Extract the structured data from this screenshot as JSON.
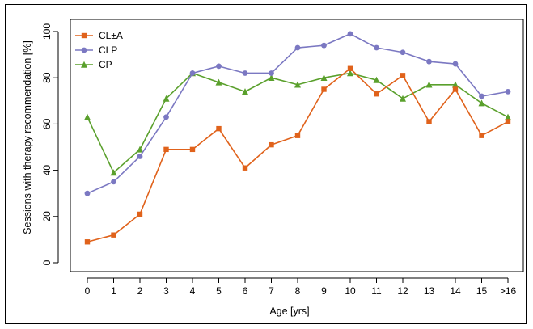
{
  "chart_data": {
    "type": "line",
    "xlabel": "Age [yrs]",
    "ylabel": "Sessions with therapy recommendation [%]",
    "categories": [
      "0",
      "1",
      "2",
      "3",
      "4",
      "5",
      "6",
      "7",
      "8",
      "9",
      "10",
      "11",
      "12",
      "13",
      "14",
      "15",
      ">16"
    ],
    "ylim": [
      0,
      100
    ],
    "yticks": [
      0,
      20,
      40,
      60,
      80,
      100
    ],
    "grid": false,
    "legend_position": "top-left",
    "series": [
      {
        "name": "CL±A",
        "marker": "square",
        "color": "#e0621b",
        "values": [
          9,
          12,
          21,
          49,
          49,
          58,
          41,
          51,
          55,
          75,
          84,
          73,
          81,
          61,
          75,
          55,
          61
        ]
      },
      {
        "name": "CLP",
        "marker": "circle",
        "color": "#7b78c2",
        "values": [
          30,
          35,
          46,
          63,
          82,
          85,
          82,
          82,
          93,
          94,
          99,
          93,
          91,
          87,
          86,
          72,
          74
        ]
      },
      {
        "name": "CP",
        "marker": "triangle",
        "color": "#5aa02c",
        "values": [
          63,
          39,
          49,
          71,
          82,
          78,
          74,
          80,
          77,
          80,
          82,
          79,
          71,
          77,
          77,
          69,
          63
        ]
      }
    ]
  }
}
